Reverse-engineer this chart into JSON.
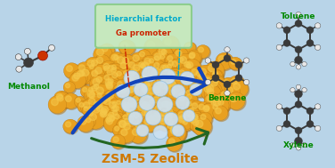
{
  "background_color": "#b8d4e8",
  "title": "ZSM-5 Zeolite",
  "title_color": "#d07800",
  "title_fontsize": 10,
  "label_methanol": "Methanol",
  "label_benzene": "Benzene",
  "label_toluene": "Toluene",
  "label_xylene": "Xylene",
  "label_color_green": "#008800",
  "box_text1": "Hierarchial factor",
  "box_text1_color": "#00aacc",
  "box_text2": "Ga promoter",
  "box_text2_color": "#cc2200",
  "box_bg": "#c8eabb",
  "box_border": "#88cc88",
  "arrow_blue": "#1144bb",
  "arrow_green": "#226622",
  "zeolite_color": "#e8a020",
  "zeolite_highlight": "#f5c84a",
  "zeolite_shadow": "#b07010",
  "zeolite_hole_color": "#cce0f0",
  "atom_dark": "#3a3a3a",
  "atom_white": "#e8e8e8",
  "bond_color": "#3a3a3a",
  "atom_red": "#cc3300",
  "dashed_red": "#cc2200",
  "dashed_cyan": "#00aacc"
}
